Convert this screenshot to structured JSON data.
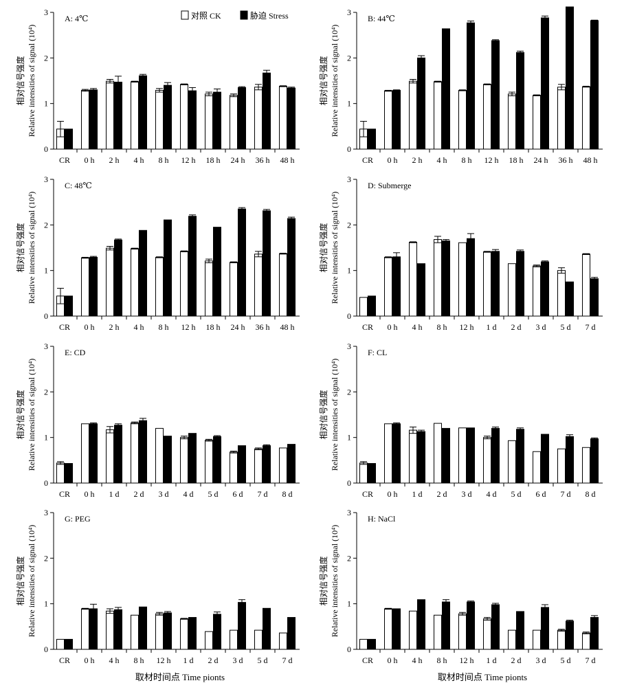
{
  "legend": {
    "ck_label": "对照 CK",
    "stress_label": "胁迫 Stress"
  },
  "x_title": "取材时间点 Time pionts",
  "chart_data": [
    {
      "type": "bar",
      "title": "A: 4℃",
      "ylabel_cn": "相对信号强度",
      "ylabel": "Relative intensities of signal (10⁴)",
      "ylim": [
        0,
        3
      ],
      "yticks": [
        0,
        1,
        2,
        3
      ],
      "categories": [
        "CR",
        "0 h",
        "2 h",
        "4 h",
        "8 h",
        "12 h",
        "18 h",
        "24 h",
        "36 h",
        "48 h"
      ],
      "series": [
        {
          "name": "对照 CK",
          "values": [
            0.44,
            1.29,
            1.49,
            1.48,
            1.29,
            1.42,
            1.21,
            1.18,
            1.36,
            1.38
          ],
          "errors": [
            0.17,
            0.02,
            0.04,
            0.01,
            0.04,
            0.01,
            0.04,
            0.03,
            0.06,
            0.01
          ]
        },
        {
          "name": "胁迫 Stress",
          "values": [
            0.44,
            1.3,
            1.47,
            1.61,
            1.4,
            1.28,
            1.25,
            1.35,
            1.67,
            1.34
          ],
          "errors": [
            0.0,
            0.03,
            0.13,
            0.03,
            0.06,
            0.07,
            0.07,
            0.02,
            0.06,
            0.02
          ]
        }
      ]
    },
    {
      "type": "bar",
      "title": "B: 44℃",
      "ylabel_cn": "相对信号强度",
      "ylabel": "Relative intensities of signal (10⁴)",
      "ylim": [
        0,
        3
      ],
      "yticks": [
        0,
        1,
        2,
        3
      ],
      "categories": [
        "CR",
        "0 h",
        "2 h",
        "4 h",
        "8 h",
        "12 h",
        "18 h",
        "24 h",
        "36 h",
        "48 h"
      ],
      "series": [
        {
          "name": "对照 CK",
          "values": [
            0.44,
            1.28,
            1.49,
            1.48,
            1.29,
            1.42,
            1.21,
            1.18,
            1.36,
            1.37
          ],
          "errors": [
            0.17,
            0.01,
            0.04,
            0.01,
            0.01,
            0.01,
            0.04,
            0.01,
            0.06,
            0.01
          ]
        },
        {
          "name": "胁迫 Stress",
          "values": [
            0.44,
            1.29,
            2.0,
            2.64,
            2.77,
            2.38,
            2.12,
            2.88,
            3.12,
            2.82
          ],
          "errors": [
            0.0,
            0.01,
            0.05,
            0.0,
            0.04,
            0.02,
            0.03,
            0.04,
            0.0,
            0.01
          ]
        }
      ]
    },
    {
      "type": "bar",
      "title": "C: 48℃",
      "ylabel_cn": "相对信号强度",
      "ylabel": "Relative intensities of signal (10⁴)",
      "ylim": [
        0,
        3
      ],
      "yticks": [
        0,
        1,
        2,
        3
      ],
      "categories": [
        "CR",
        "0 h",
        "2 h",
        "4 h",
        "8 h",
        "12 h",
        "18 h",
        "24 h",
        "36 h",
        "48 h"
      ],
      "series": [
        {
          "name": "对照 CK",
          "values": [
            0.44,
            1.28,
            1.49,
            1.48,
            1.29,
            1.42,
            1.21,
            1.18,
            1.36,
            1.37
          ],
          "errors": [
            0.17,
            0.01,
            0.04,
            0.01,
            0.01,
            0.01,
            0.04,
            0.01,
            0.06,
            0.01
          ]
        },
        {
          "name": "胁迫 Stress",
          "values": [
            0.44,
            1.29,
            1.67,
            1.88,
            2.11,
            2.19,
            1.95,
            2.35,
            2.31,
            2.14
          ],
          "errors": [
            0.0,
            0.02,
            0.02,
            0.0,
            0.0,
            0.03,
            0.0,
            0.03,
            0.03,
            0.03
          ]
        }
      ]
    },
    {
      "type": "bar",
      "title": "D: Submerge",
      "ylabel_cn": "相对信号强度",
      "ylabel": "Relative intensities of signal (10⁴)",
      "ylim": [
        0,
        3
      ],
      "yticks": [
        0,
        1,
        2,
        3
      ],
      "categories": [
        "CR",
        "0 h",
        "4 h",
        "8 h",
        "12 h",
        "1 d",
        "2 d",
        "3 d",
        "5 d",
        "7 d"
      ],
      "series": [
        {
          "name": "对照 CK",
          "values": [
            0.41,
            1.29,
            1.62,
            1.68,
            1.61,
            1.41,
            1.15,
            1.1,
            1.0,
            1.36
          ],
          "errors": [
            0.0,
            0.01,
            0.01,
            0.07,
            0.0,
            0.01,
            0.0,
            0.02,
            0.06,
            0.01
          ]
        },
        {
          "name": "胁迫 Stress",
          "values": [
            0.44,
            1.3,
            1.15,
            1.65,
            1.7,
            1.42,
            1.42,
            1.19,
            0.75,
            0.82
          ],
          "errors": [
            0.0,
            0.09,
            0.0,
            0.03,
            0.11,
            0.04,
            0.03,
            0.02,
            0.0,
            0.03
          ]
        }
      ]
    },
    {
      "type": "bar",
      "title": "E: CD",
      "ylabel_cn": "相对信号强度",
      "ylabel": "Relative intensities of signal (10⁴)",
      "ylim": [
        0,
        3
      ],
      "yticks": [
        0,
        1,
        2,
        3
      ],
      "categories": [
        "CR",
        "0 h",
        "1 d",
        "2 d",
        "3 d",
        "4 d",
        "5 d",
        "6 d",
        "7 d",
        "8 d"
      ],
      "series": [
        {
          "name": "对照 CK",
          "values": [
            0.44,
            1.3,
            1.17,
            1.32,
            1.2,
            1.0,
            0.94,
            0.68,
            0.75,
            0.77
          ],
          "errors": [
            0.03,
            0.0,
            0.07,
            0.02,
            0.0,
            0.03,
            0.02,
            0.02,
            0.02,
            0.0
          ]
        },
        {
          "name": "胁迫 Stress",
          "values": [
            0.43,
            1.3,
            1.27,
            1.37,
            1.03,
            1.09,
            1.02,
            0.82,
            0.82,
            0.85
          ],
          "errors": [
            0.0,
            0.02,
            0.03,
            0.05,
            0.0,
            0.0,
            0.02,
            0.0,
            0.02,
            0.0
          ]
        }
      ]
    },
    {
      "type": "bar",
      "title": "F: CL",
      "ylabel_cn": "相对信号强度",
      "ylabel": "Relative intensities of signal (10⁴)",
      "ylim": [
        0,
        3
      ],
      "yticks": [
        0,
        1,
        2,
        3
      ],
      "categories": [
        "CR",
        "0 h",
        "1 d",
        "2 d",
        "3 d",
        "4 d",
        "5 d",
        "6 d",
        "7 d",
        "8 d"
      ],
      "series": [
        {
          "name": "对照 CK",
          "values": [
            0.44,
            1.3,
            1.16,
            1.31,
            1.21,
            1.0,
            0.93,
            0.69,
            0.75,
            0.78
          ],
          "errors": [
            0.03,
            0.0,
            0.07,
            0.0,
            0.0,
            0.03,
            0.0,
            0.0,
            0.0,
            0.0
          ]
        },
        {
          "name": "胁迫 Stress",
          "values": [
            0.43,
            1.3,
            1.13,
            1.2,
            1.21,
            1.2,
            1.18,
            1.07,
            1.02,
            0.97
          ],
          "errors": [
            0.0,
            0.02,
            0.03,
            0.0,
            0.0,
            0.03,
            0.03,
            0.0,
            0.04,
            0.02
          ]
        }
      ]
    },
    {
      "type": "bar",
      "title": "G: PEG",
      "ylabel_cn": "相对信号强度",
      "ylabel": "Relative intensities of signal (10⁴)",
      "ylim": [
        0,
        3
      ],
      "yticks": [
        0,
        1,
        2,
        3
      ],
      "categories": [
        "CR",
        "0 h",
        "4 h",
        "8 h",
        "12 h",
        "1 d",
        "2 d",
        "3 d",
        "5 d",
        "7 d"
      ],
      "series": [
        {
          "name": "对照 CK",
          "values": [
            0.22,
            0.89,
            0.84,
            0.75,
            0.78,
            0.67,
            0.39,
            0.42,
            0.42,
            0.36
          ],
          "errors": [
            0.0,
            0.01,
            0.05,
            0.0,
            0.03,
            0.01,
            0.0,
            0.0,
            0.0,
            0.0
          ]
        },
        {
          "name": "胁迫 Stress",
          "values": [
            0.22,
            0.89,
            0.87,
            0.93,
            0.8,
            0.7,
            0.77,
            1.03,
            0.9,
            0.7
          ],
          "errors": [
            0.0,
            0.1,
            0.05,
            0.0,
            0.03,
            0.0,
            0.05,
            0.06,
            0.0,
            0.0
          ]
        }
      ]
    },
    {
      "type": "bar",
      "title": "H: NaCl",
      "ylabel_cn": "相对信号强度",
      "ylabel": "Relative intensities of signal (10⁴)",
      "ylim": [
        0,
        3
      ],
      "yticks": [
        0,
        1,
        2,
        3
      ],
      "categories": [
        "CR",
        "0 h",
        "4 h",
        "8 h",
        "12 h",
        "1 d",
        "2 d",
        "3 d",
        "5 d",
        "7 d"
      ],
      "series": [
        {
          "name": "对照 CK",
          "values": [
            0.22,
            0.89,
            0.84,
            0.75,
            0.78,
            0.67,
            0.42,
            0.42,
            0.42,
            0.36
          ],
          "errors": [
            0.0,
            0.01,
            0.0,
            0.0,
            0.03,
            0.03,
            0.0,
            0.0,
            0.02,
            0.02
          ]
        },
        {
          "name": "胁迫 Stress",
          "values": [
            0.22,
            0.89,
            1.09,
            1.04,
            1.04,
            0.98,
            0.83,
            0.92,
            0.62,
            0.7
          ],
          "errors": [
            0.0,
            0.0,
            0.0,
            0.05,
            0.02,
            0.03,
            0.0,
            0.06,
            0.02,
            0.04
          ]
        }
      ]
    }
  ]
}
